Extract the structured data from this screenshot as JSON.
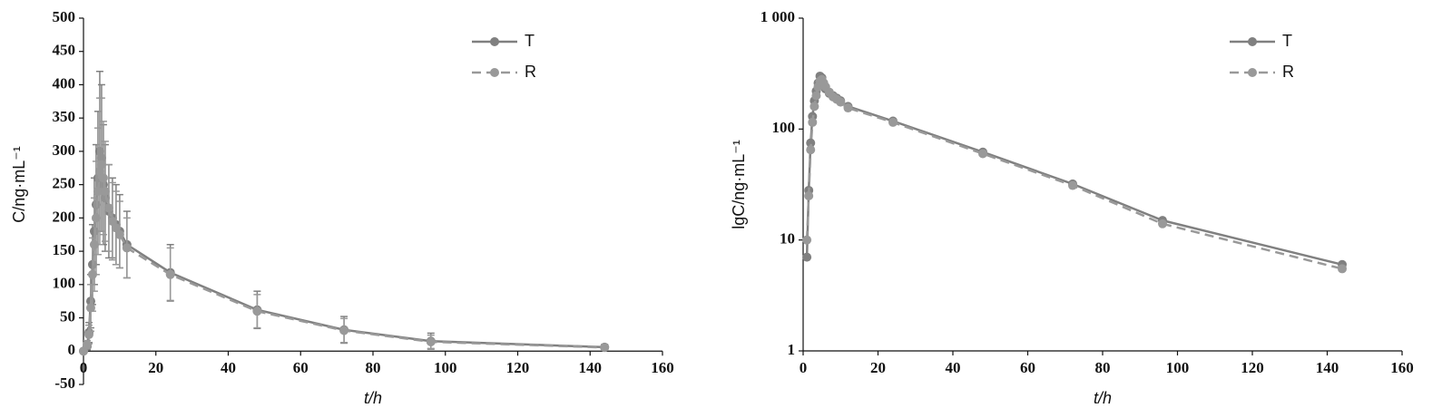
{
  "chart_data": [
    {
      "type": "line",
      "xlabel": "t/h",
      "ylabel": "C/ng·mL⁻¹",
      "x": [
        0,
        1,
        1.5,
        2,
        2.5,
        3,
        3.5,
        4,
        4.5,
        5,
        5.5,
        6,
        7,
        8,
        9,
        10,
        12,
        24,
        48,
        72,
        96,
        144
      ],
      "xlim": [
        0,
        160
      ],
      "xticks": [
        0,
        20,
        40,
        60,
        80,
        100,
        120,
        140,
        160
      ],
      "ylim": [
        -50,
        500
      ],
      "yticks": [
        -50,
        0,
        50,
        100,
        150,
        200,
        250,
        300,
        350,
        400,
        450,
        500
      ],
      "log_scale": false,
      "legend": "upper-right",
      "series": [
        {
          "name": "T",
          "color": "#808080",
          "linestyle": "solid",
          "values": [
            0,
            7,
            28,
            75,
            130,
            180,
            220,
            260,
            300,
            290,
            250,
            230,
            210,
            200,
            190,
            180,
            160,
            118,
            62,
            32,
            15,
            6
          ],
          "errors": [
            0,
            5,
            15,
            40,
            60,
            80,
            90,
            100,
            120,
            110,
            90,
            80,
            70,
            60,
            60,
            55,
            50,
            42,
            28,
            20,
            12,
            4
          ]
        },
        {
          "name": "R",
          "color": "#999999",
          "linestyle": "dashed",
          "values": [
            0,
            10,
            25,
            65,
            115,
            160,
            200,
            240,
            270,
            280,
            260,
            240,
            215,
            195,
            185,
            175,
            155,
            115,
            60,
            31,
            14,
            5.5
          ],
          "errors": [
            0,
            6,
            14,
            35,
            55,
            70,
            85,
            95,
            110,
            100,
            85,
            75,
            65,
            58,
            55,
            50,
            45,
            40,
            25,
            18,
            10,
            4
          ]
        }
      ]
    },
    {
      "type": "line",
      "xlabel": "t/h",
      "ylabel": "lgC/ng·mL⁻¹",
      "x": [
        1,
        1.5,
        2,
        2.5,
        3,
        3.5,
        4,
        4.5,
        5,
        5.5,
        6,
        7,
        8,
        9,
        10,
        12,
        24,
        48,
        72,
        96,
        144
      ],
      "xlim": [
        0,
        160
      ],
      "xticks": [
        0,
        20,
        40,
        60,
        80,
        100,
        120,
        140,
        160
      ],
      "ylim": [
        1,
        1000
      ],
      "yticks": [
        1,
        10,
        100,
        {
          "value": 1000,
          "label": "1 000"
        }
      ],
      "log_scale": true,
      "legend": "upper-right",
      "series": [
        {
          "name": "T",
          "color": "#808080",
          "linestyle": "solid",
          "values": [
            7,
            28,
            75,
            130,
            180,
            220,
            260,
            300,
            290,
            250,
            230,
            210,
            200,
            190,
            180,
            160,
            118,
            62,
            32,
            15,
            6
          ]
        },
        {
          "name": "R",
          "color": "#999999",
          "linestyle": "dashed",
          "values": [
            10,
            25,
            65,
            115,
            160,
            200,
            240,
            270,
            280,
            260,
            240,
            215,
            195,
            185,
            175,
            155,
            115,
            60,
            31,
            14,
            5.5
          ]
        }
      ]
    }
  ]
}
